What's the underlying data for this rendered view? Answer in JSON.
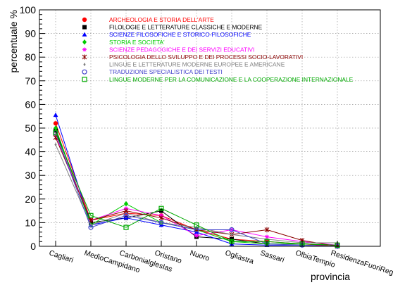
{
  "chart_data": {
    "type": "line",
    "title": "",
    "xlabel": "provincia",
    "ylabel": "percentuale %",
    "ylim": [
      0,
      100
    ],
    "yticks": [
      0,
      10,
      20,
      30,
      40,
      50,
      60,
      70,
      80,
      90,
      100
    ],
    "grid": true,
    "legend_position": "top",
    "categories": [
      "Cagliari",
      "MedioCampidano",
      "CarbonialglesIas",
      "Oristano",
      "Nuoro",
      "Ogliastra",
      "Sassari",
      "OlbiaTempio",
      "ResidenzaFuoriRegione"
    ],
    "series": [
      {
        "name": "ARCHEOLOGIA E STORIA DELL'ARTE",
        "color": "#ff0000",
        "marker": "circle-filled",
        "values": [
          52,
          11,
          14,
          13,
          7,
          3,
          2,
          1,
          0
        ]
      },
      {
        "name": "FILOLOGIE E LETTERATURE CLASSICHE E MODERNE",
        "color": "#000000",
        "marker": "square-filled",
        "values": [
          49,
          10,
          12,
          15,
          4,
          3,
          1,
          1,
          0.5
        ]
      },
      {
        "name": "SCIENZE FILOSOFICHE E STORICO-FILOSOFICHE",
        "color": "#0000ff",
        "marker": "triangle-filled",
        "values": [
          55.5,
          9,
          12,
          9,
          6,
          1,
          0.5,
          0.5,
          0
        ]
      },
      {
        "name": "STORIA E SOCIETA'",
        "color": "#00cc00",
        "marker": "diamond-filled",
        "values": [
          50,
          9,
          18,
          10,
          7,
          2,
          1,
          1,
          0.5
        ]
      },
      {
        "name": "SCIENZE PEDAGOGICHE E DEI SERVIZI EDUCATIVI",
        "color": "#ff00ff",
        "marker": "star",
        "values": [
          47,
          11,
          16,
          13,
          4.5,
          7,
          4,
          2,
          0.5
        ]
      },
      {
        "name": "PSICOLOGIA DELLO SVILUPPO E DEI PROCESSI SOCIO-LAVORATIVI",
        "color": "#8b0000",
        "marker": "cross",
        "values": [
          46,
          11,
          15,
          12,
          7,
          5,
          7,
          2.5,
          0
        ]
      },
      {
        "name": "LINGUE E LETTERATURE MODERNE EUROPEE E AMERICANE",
        "color": "#808080",
        "marker": "small-diamond",
        "values": [
          43,
          9,
          14,
          10,
          8,
          5,
          3,
          1.5,
          1.5
        ]
      },
      {
        "name": "TRADUZIONE SPECIALISTICA DEI TESTI",
        "color": "#4444cc",
        "marker": "circle-open",
        "values": [
          48,
          8,
          13,
          10,
          7,
          7,
          1,
          0.5,
          0
        ]
      },
      {
        "name": "LINGUE MODERNE PER LA COMUNICAZIONE E LA COOPERAZIONE INTERNAZIONALE",
        "color": "#00aa00",
        "marker": "square-open",
        "values": [
          48,
          13,
          8,
          16,
          9,
          2,
          2,
          1,
          0.5
        ]
      }
    ]
  }
}
